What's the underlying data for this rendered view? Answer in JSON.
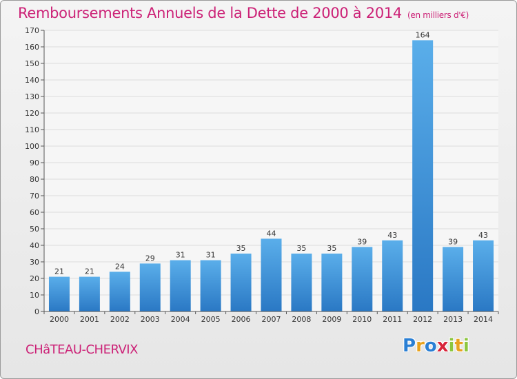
{
  "title": "Remboursements Annuels de la Dette de 2000 à 2014",
  "subtitle": "(en milliers d'€)",
  "commune": "CHâTEAU-CHERVIX",
  "logo": {
    "letters": [
      {
        "char": "P",
        "color": "#2a7fd4"
      },
      {
        "char": "r",
        "color": "#e8a21e"
      },
      {
        "char": "o",
        "color": "#2a7fd4"
      },
      {
        "char": "x",
        "color": "#d8243a"
      },
      {
        "char": "i",
        "color": "#8cc63e"
      },
      {
        "char": "t",
        "color": "#e8a21e"
      },
      {
        "char": "i",
        "color": "#8cc63e"
      }
    ]
  },
  "colors": {
    "bar_top": "#5aaeea",
    "bar_bottom": "#2a78c4",
    "accent": "#cc2277"
  },
  "chart_data": {
    "type": "bar",
    "title": "Remboursements Annuels de la Dette de 2000 à 2014",
    "subtitle": "(en milliers d'€)",
    "xlabel": "",
    "ylabel": "",
    "categories": [
      "2000",
      "2001",
      "2002",
      "2003",
      "2004",
      "2005",
      "2006",
      "2007",
      "2008",
      "2009",
      "2010",
      "2011",
      "2012",
      "2013",
      "2014"
    ],
    "values": [
      21,
      21,
      24,
      29,
      31,
      31,
      35,
      44,
      35,
      35,
      39,
      43,
      164,
      39,
      43
    ],
    "ylim": [
      0,
      170
    ],
    "yticks": [
      0,
      10,
      20,
      30,
      40,
      50,
      60,
      70,
      80,
      90,
      100,
      110,
      120,
      130,
      140,
      150,
      160,
      170
    ],
    "grid": true,
    "legend": "none"
  }
}
